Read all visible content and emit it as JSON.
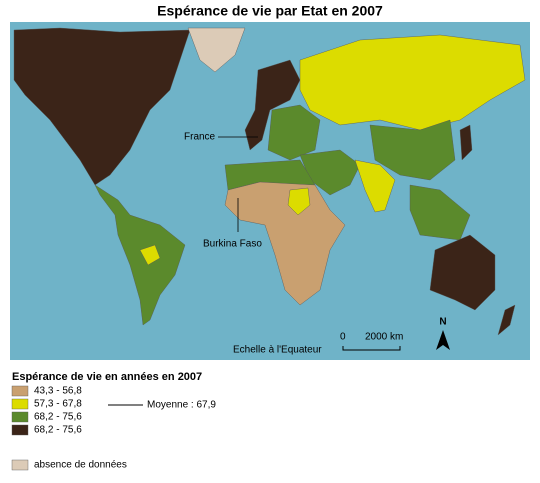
{
  "header": {
    "title": "Espérance de vie par Etat en 2007"
  },
  "map": {
    "labels": [
      "France",
      "Burkina Faso"
    ],
    "scale": {
      "caption": "Echelle à l'Equateur",
      "start": "0",
      "end": "2000 km"
    },
    "north": "N"
  },
  "legend": {
    "title": "Espérance de vie en années en 2007",
    "items": [
      {
        "label": "43,3 - 56,8",
        "color": "#c9a070"
      },
      {
        "label": "57,3 - 67,8",
        "color": "#dcdc00"
      },
      {
        "label": "68,2 - 75,6",
        "color": "#5b8a2c"
      },
      {
        "label": "68,2 - 75,6",
        "color": "#3b2418"
      }
    ],
    "mean": "Moyenne : 67,9",
    "nodata": {
      "label": "absence de données",
      "color": "#dccbb7"
    }
  }
}
